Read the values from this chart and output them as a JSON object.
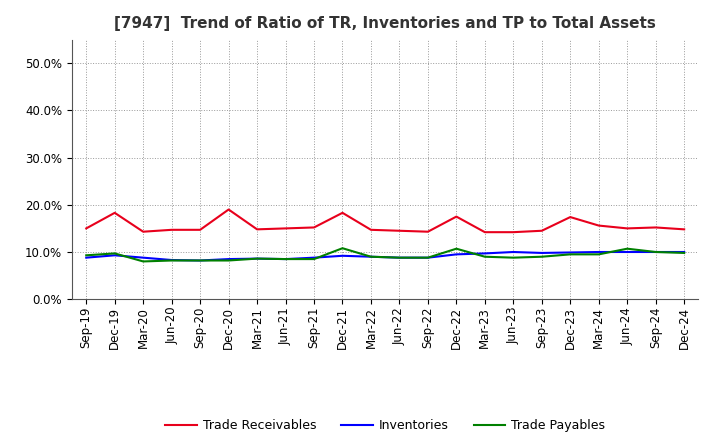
{
  "title": "[7947]  Trend of Ratio of TR, Inventories and TP to Total Assets",
  "x_labels": [
    "Sep-19",
    "Dec-19",
    "Mar-20",
    "Jun-20",
    "Sep-20",
    "Dec-20",
    "Mar-21",
    "Jun-21",
    "Sep-21",
    "Dec-21",
    "Mar-22",
    "Jun-22",
    "Sep-22",
    "Dec-22",
    "Mar-23",
    "Jun-23",
    "Sep-23",
    "Dec-23",
    "Mar-24",
    "Jun-24",
    "Sep-24",
    "Dec-24"
  ],
  "trade_receivables": [
    0.15,
    0.183,
    0.143,
    0.147,
    0.147,
    0.19,
    0.148,
    0.15,
    0.152,
    0.183,
    0.147,
    0.145,
    0.143,
    0.175,
    0.142,
    0.142,
    0.145,
    0.174,
    0.156,
    0.15,
    0.152,
    0.148
  ],
  "inventories": [
    0.088,
    0.093,
    0.088,
    0.083,
    0.082,
    0.085,
    0.086,
    0.085,
    0.088,
    0.092,
    0.09,
    0.088,
    0.088,
    0.095,
    0.097,
    0.1,
    0.098,
    0.099,
    0.1,
    0.1,
    0.1,
    0.1
  ],
  "trade_payables": [
    0.093,
    0.097,
    0.08,
    0.082,
    0.082,
    0.082,
    0.086,
    0.085,
    0.085,
    0.108,
    0.09,
    0.088,
    0.088,
    0.107,
    0.09,
    0.088,
    0.09,
    0.095,
    0.095,
    0.107,
    0.1,
    0.098
  ],
  "colors": {
    "trade_receivables": "#e8001c",
    "inventories": "#0000ff",
    "trade_payables": "#008000"
  },
  "ylim": [
    0.0,
    0.55
  ],
  "yticks": [
    0.0,
    0.1,
    0.2,
    0.3,
    0.4,
    0.5
  ],
  "background_color": "#ffffff",
  "grid_color": "#999999",
  "title_fontsize": 11,
  "tick_fontsize": 8.5,
  "legend_fontsize": 9,
  "line_width": 1.5
}
